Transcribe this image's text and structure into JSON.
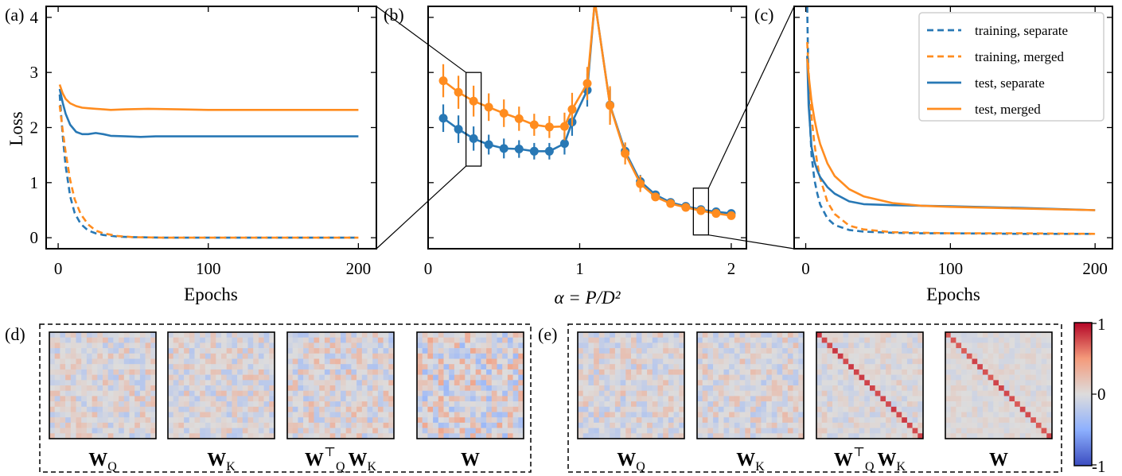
{
  "colors": {
    "separate": "#2878b5",
    "merged": "#ff8c1f"
  },
  "chart_data": [
    {
      "panel": "(a)",
      "type": "line",
      "xlabel": "Epochs",
      "ylabel": "Loss",
      "xlim": [
        -8,
        212
      ],
      "ylim": [
        -0.2,
        4.2
      ],
      "xticks": [
        0,
        100,
        200
      ],
      "yticks": [
        0,
        1,
        2,
        3,
        4
      ],
      "series": [
        {
          "name": "training, separate",
          "style": "dashed",
          "color": "separate",
          "x": [
            1,
            3,
            5,
            8,
            11,
            15,
            20,
            25,
            30,
            40,
            50,
            70,
            100,
            150,
            200
          ],
          "y": [
            2.6,
            1.85,
            1.3,
            0.75,
            0.45,
            0.25,
            0.13,
            0.08,
            0.05,
            0.02,
            0.01,
            0.0,
            0.0,
            0.0,
            0.0
          ]
        },
        {
          "name": "training, merged",
          "style": "dashed",
          "color": "merged",
          "x": [
            1,
            3,
            5,
            8,
            11,
            15,
            20,
            25,
            30,
            40,
            50,
            70,
            100,
            150,
            200
          ],
          "y": [
            2.4,
            1.95,
            1.55,
            1.05,
            0.7,
            0.43,
            0.24,
            0.13,
            0.08,
            0.03,
            0.01,
            0.0,
            0.0,
            0.0,
            0.0
          ]
        },
        {
          "name": "test, separate",
          "style": "solid",
          "color": "separate",
          "x": [
            1,
            3,
            5,
            8,
            12,
            16,
            20,
            25,
            30,
            35,
            45,
            55,
            65,
            80,
            100,
            150,
            200
          ],
          "y": [
            2.7,
            2.45,
            2.25,
            2.05,
            1.92,
            1.88,
            1.88,
            1.9,
            1.88,
            1.85,
            1.84,
            1.83,
            1.84,
            1.84,
            1.84,
            1.84,
            1.84
          ]
        },
        {
          "name": "test, merged",
          "style": "solid",
          "color": "merged",
          "x": [
            1,
            3,
            5,
            8,
            12,
            16,
            20,
            25,
            30,
            35,
            45,
            60,
            80,
            100,
            150,
            200
          ],
          "y": [
            2.78,
            2.62,
            2.52,
            2.44,
            2.39,
            2.36,
            2.35,
            2.34,
            2.33,
            2.32,
            2.33,
            2.34,
            2.33,
            2.32,
            2.32,
            2.32
          ]
        }
      ]
    },
    {
      "panel": "(b)",
      "type": "line",
      "xlabel": "α = P/D²",
      "xlim": [
        0,
        2.1
      ],
      "ylim": [
        -0.2,
        4.2
      ],
      "xticks": [
        0,
        1,
        2
      ],
      "yticks": [
        0,
        1,
        2,
        3,
        4
      ],
      "series": [
        {
          "name": "test, separate",
          "color": "separate",
          "markers": true,
          "x": [
            0.1,
            0.2,
            0.3,
            0.4,
            0.5,
            0.6,
            0.7,
            0.8,
            0.9,
            0.95,
            1.05,
            1.1,
            1.2,
            1.3,
            1.4,
            1.5,
            1.6,
            1.7,
            1.8,
            1.9,
            2.0
          ],
          "y": [
            2.17,
            1.97,
            1.8,
            1.69,
            1.62,
            1.61,
            1.57,
            1.57,
            1.71,
            2.1,
            2.68,
            4.3,
            2.41,
            1.57,
            1.02,
            0.78,
            0.64,
            0.57,
            0.51,
            0.47,
            0.44
          ],
          "err": [
            0.25,
            0.25,
            0.22,
            0.18,
            0.18,
            0.16,
            0.15,
            0.15,
            0.2,
            0.25,
            0.3,
            0,
            0.3,
            0.15,
            0.12,
            0.06,
            0.05,
            0.04,
            0.04,
            0.04,
            0.04
          ]
        },
        {
          "name": "test, merged",
          "color": "merged",
          "markers": true,
          "x": [
            0.1,
            0.2,
            0.3,
            0.4,
            0.5,
            0.6,
            0.7,
            0.8,
            0.9,
            0.95,
            1.05,
            1.1,
            1.2,
            1.3,
            1.4,
            1.5,
            1.6,
            1.7,
            1.8,
            1.9,
            2.0
          ],
          "y": [
            2.85,
            2.64,
            2.48,
            2.37,
            2.26,
            2.16,
            2.05,
            2.01,
            2.02,
            2.33,
            2.8,
            4.3,
            2.4,
            1.53,
            0.98,
            0.74,
            0.62,
            0.55,
            0.49,
            0.44,
            0.4
          ],
          "err": [
            0.3,
            0.3,
            0.28,
            0.25,
            0.25,
            0.22,
            0.2,
            0.2,
            0.25,
            0.3,
            0.3,
            0,
            0.35,
            0.2,
            0.15,
            0.06,
            0.05,
            0.04,
            0.04,
            0.04,
            0.04
          ]
        }
      ],
      "zoom_boxes": [
        {
          "x0": 0.25,
          "x1": 0.35,
          "y0": 1.3,
          "y1": 3.0
        },
        {
          "x0": 1.75,
          "x1": 1.85,
          "y0": 0.05,
          "y1": 0.9
        }
      ]
    },
    {
      "panel": "(c)",
      "type": "line",
      "xlabel": "Epochs",
      "xlim": [
        -8,
        212
      ],
      "ylim": [
        -0.2,
        4.2
      ],
      "xticks": [
        0,
        100,
        200
      ],
      "yticks": [
        0,
        1,
        2,
        3,
        4
      ],
      "legend": {
        "position": "top-right",
        "entries": [
          "training, separate",
          "training, merged",
          "test, separate",
          "test, merged"
        ]
      },
      "series": [
        {
          "name": "training, separate",
          "style": "dashed",
          "color": "separate",
          "x": [
            1,
            2,
            4,
            6,
            8,
            10,
            15,
            20,
            30,
            40,
            60,
            80,
            100,
            150,
            200
          ],
          "y": [
            4.2,
            2.6,
            1.5,
            1.05,
            0.8,
            0.6,
            0.35,
            0.23,
            0.14,
            0.11,
            0.09,
            0.08,
            0.08,
            0.07,
            0.07
          ]
        },
        {
          "name": "training, merged",
          "style": "dashed",
          "color": "merged",
          "x": [
            1,
            2,
            4,
            6,
            8,
            10,
            15,
            20,
            30,
            40,
            60,
            80,
            100,
            150,
            200
          ],
          "y": [
            3.55,
            3.0,
            2.2,
            1.7,
            1.35,
            1.08,
            0.65,
            0.43,
            0.22,
            0.15,
            0.1,
            0.09,
            0.08,
            0.08,
            0.07
          ]
        },
        {
          "name": "test, separate",
          "style": "solid",
          "color": "separate",
          "x": [
            1,
            2,
            4,
            6,
            8,
            10,
            15,
            20,
            30,
            40,
            60,
            80,
            100,
            150,
            200
          ],
          "y": [
            3.3,
            2.4,
            1.65,
            1.38,
            1.22,
            1.1,
            0.92,
            0.8,
            0.66,
            0.61,
            0.59,
            0.58,
            0.57,
            0.54,
            0.5
          ]
        },
        {
          "name": "test, merged",
          "style": "solid",
          "color": "merged",
          "x": [
            1,
            2,
            4,
            6,
            8,
            10,
            15,
            20,
            30,
            40,
            60,
            80,
            100,
            150,
            200
          ],
          "y": [
            3.25,
            2.95,
            2.48,
            2.15,
            1.9,
            1.7,
            1.35,
            1.12,
            0.88,
            0.75,
            0.63,
            0.58,
            0.56,
            0.53,
            0.5
          ]
        }
      ]
    },
    {
      "panel": "(d)",
      "type": "heatmap",
      "grid_size": 20,
      "colormap": "coolwarm",
      "range": [
        -1,
        1
      ],
      "matrices": [
        {
          "label": "W",
          "sub": "Q",
          "sup": "",
          "diagonal": 0,
          "amp": 0.35,
          "seed": 11
        },
        {
          "label": "W",
          "sub": "K",
          "sup": "",
          "diagonal": 0,
          "amp": 0.35,
          "seed": 23
        },
        {
          "label": "W",
          "sub": "Q",
          "sup": "⊤",
          "label2": "W",
          "sub2": "K",
          "diagonal": 0,
          "amp": 0.4,
          "seed": 37
        },
        {
          "label": "W",
          "sub": "",
          "sup": "",
          "diagonal": 0,
          "amp": 0.5,
          "seed": 51
        }
      ]
    },
    {
      "panel": "(e)",
      "type": "heatmap",
      "grid_size": 20,
      "colormap": "coolwarm",
      "range": [
        -1,
        1
      ],
      "matrices": [
        {
          "label": "W",
          "sub": "Q",
          "sup": "",
          "diagonal": 0,
          "amp": 0.35,
          "seed": 67
        },
        {
          "label": "W",
          "sub": "K",
          "sup": "",
          "diagonal": 0,
          "amp": 0.35,
          "seed": 79
        },
        {
          "label": "W",
          "sub": "Q",
          "sup": "⊤",
          "label2": "W",
          "sub2": "K",
          "diagonal": 0.8,
          "amp": 0.25,
          "seed": 83
        },
        {
          "label": "W",
          "sub": "",
          "sup": "",
          "diagonal": 0.75,
          "amp": 0.18,
          "seed": 97
        }
      ]
    }
  ],
  "colorbar": {
    "max_label": "1",
    "mid_label": "0",
    "min_label": "-1"
  }
}
